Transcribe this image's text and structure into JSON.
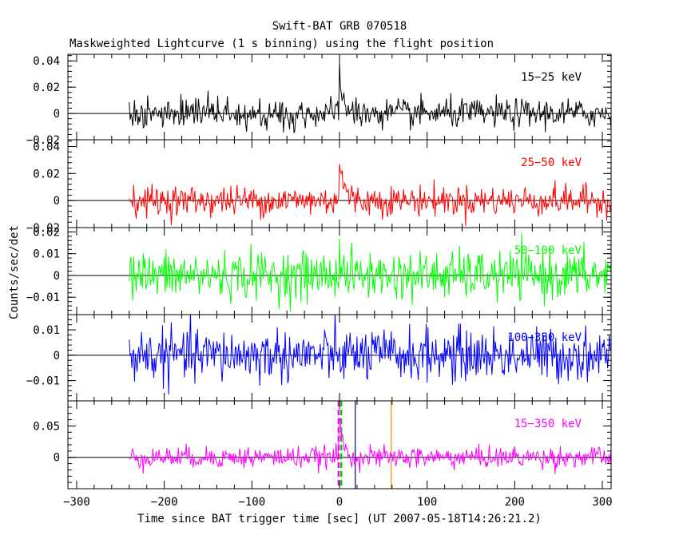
{
  "chart_data": {
    "type": "line",
    "title": "Swift-BAT GRB 070518",
    "subtitle": "Maskweighted Lightcurve (1 s binning) using the flight position",
    "xlabel": "Time since BAT trigger time [sec] (UT 2007-05-18T14:26:21.2)",
    "ylabel": "Counts/sec/det",
    "xlim": [
      -310,
      310
    ],
    "x_ticks": [
      -300,
      -200,
      -100,
      0,
      100,
      200,
      300
    ],
    "data_range": [
      -240,
      310
    ],
    "markers": [
      {
        "x": -1,
        "color": "#ff00ff",
        "style": "dashed"
      },
      {
        "x": 2,
        "color": "#00cc00",
        "style": "dashed"
      },
      {
        "x": 18,
        "color": "#000080",
        "style": "solid"
      },
      {
        "x": 59,
        "color": "#ff8800",
        "style": "solid"
      }
    ],
    "panels": [
      {
        "name": "15-25 keV",
        "label": "15−25 keV",
        "color": "#000000",
        "ylim": [
          -0.02,
          0.045
        ],
        "y_ticks": [
          -0.02,
          0,
          0.02,
          0.04
        ],
        "y_tick_labels": [
          "−0.02",
          "0",
          "0.02",
          "0.04"
        ],
        "noise_sigma": 0.0055,
        "peak": 0.033,
        "peak_decay": 4
      },
      {
        "name": "25-50 keV",
        "label": "25−50 keV",
        "color": "#ff0000",
        "ylim": [
          -0.02,
          0.045
        ],
        "y_ticks": [
          -0.02,
          0,
          0.02,
          0.04
        ],
        "y_tick_labels": [
          "−0.02",
          "0",
          "0.02",
          "0.04"
        ],
        "noise_sigma": 0.0055,
        "peak": 0.03,
        "peak_decay": 5
      },
      {
        "name": "50-100 keV",
        "label": "50−100 keV",
        "color": "#00ff00",
        "ylim": [
          -0.018,
          0.022
        ],
        "y_ticks": [
          -0.01,
          0,
          0.01,
          0.02
        ],
        "y_tick_labels": [
          "−0.01",
          "0",
          "0.01",
          "0.02"
        ],
        "noise_sigma": 0.0055,
        "peak": 0.01,
        "peak_decay": 3
      },
      {
        "name": "100-350 keV",
        "label": "100−350 keV",
        "color": "#0000ff",
        "ylim": [
          -0.018,
          0.016
        ],
        "y_ticks": [
          -0.01,
          0,
          0.01
        ],
        "y_tick_labels": [
          "−0.01",
          "0",
          "0.01"
        ],
        "noise_sigma": 0.0052,
        "peak": 0.0,
        "peak_decay": 3
      },
      {
        "name": "15-350 keV",
        "label": "15−350 keV",
        "color": "#ff00ff",
        "ylim": [
          -0.05,
          0.09
        ],
        "y_ticks": [
          0,
          0.05
        ],
        "y_tick_labels": [
          "0",
          "0.05"
        ],
        "noise_sigma": 0.0085,
        "peak": 0.065,
        "peak_decay": 4
      }
    ]
  }
}
